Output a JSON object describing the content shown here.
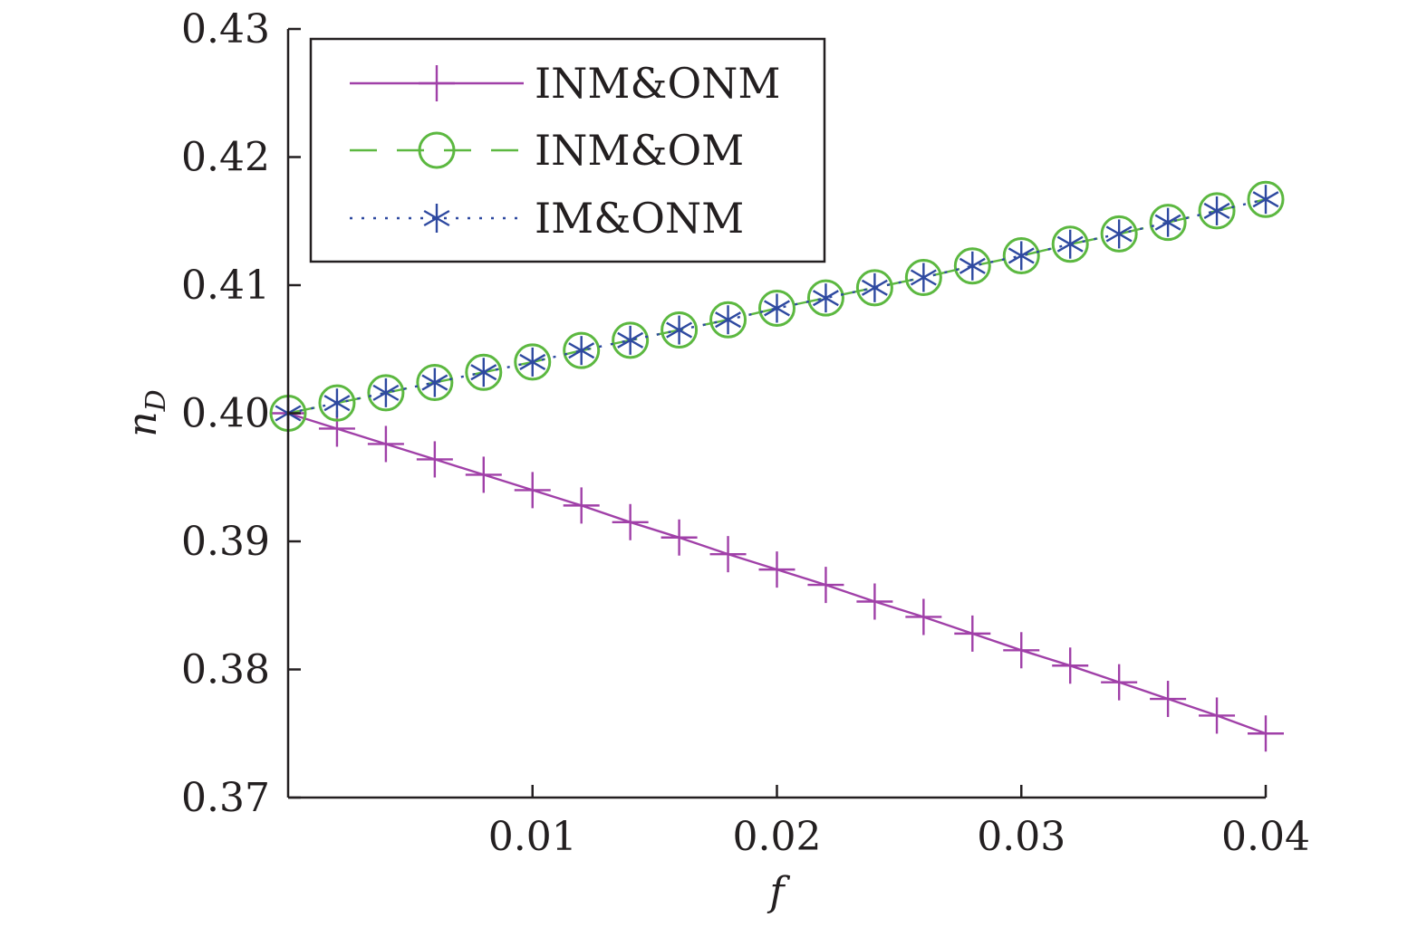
{
  "chart_data": {
    "type": "line",
    "title": "",
    "xlabel": "f",
    "ylabel": "n",
    "ylabel_sub": "D",
    "xlim": [
      0,
      0.04
    ],
    "ylim": [
      0.37,
      0.43
    ],
    "x_ticks": [
      0.01,
      0.02,
      0.03,
      0.04
    ],
    "x_tick_labels": [
      "0.01",
      "0.02",
      "0.03",
      "0.04"
    ],
    "y_ticks": [
      0.37,
      0.38,
      0.39,
      0.4,
      0.41,
      0.42,
      0.43
    ],
    "y_tick_labels": [
      "0.37",
      "0.38",
      "0.39",
      "0.40",
      "0.41",
      "0.42",
      "0.43"
    ],
    "grid": false,
    "legend_position": "top-left",
    "x": [
      0,
      0.002,
      0.004,
      0.006,
      0.008,
      0.01,
      0.012,
      0.014,
      0.016,
      0.018,
      0.02,
      0.022,
      0.024,
      0.026,
      0.028,
      0.03,
      0.032,
      0.034,
      0.036,
      0.038,
      0.04
    ],
    "series": [
      {
        "name": "INM&ONM",
        "color": "#a040a8",
        "line": "solid",
        "marker": "plus",
        "values": [
          0.4,
          0.3988,
          0.3976,
          0.3964,
          0.3952,
          0.394,
          0.3928,
          0.3915,
          0.3903,
          0.389,
          0.3878,
          0.3866,
          0.3853,
          0.3841,
          0.3828,
          0.3815,
          0.3803,
          0.379,
          0.3777,
          0.3764,
          0.375
        ]
      },
      {
        "name": "INM&OM",
        "color": "#5cb840",
        "line": "dashed",
        "marker": "circle",
        "values": [
          0.4,
          0.4008,
          0.4016,
          0.4024,
          0.4032,
          0.404,
          0.4049,
          0.4057,
          0.4065,
          0.4073,
          0.4082,
          0.409,
          0.4098,
          0.4106,
          0.4115,
          0.4123,
          0.4132,
          0.414,
          0.4149,
          0.4158,
          0.4167
        ]
      },
      {
        "name": "IM&ONM",
        "color": "#2e49a0",
        "line": "dotted",
        "marker": "asterisk",
        "values": [
          0.4,
          0.4008,
          0.4016,
          0.4024,
          0.4032,
          0.404,
          0.4049,
          0.4057,
          0.4065,
          0.4073,
          0.4082,
          0.409,
          0.4098,
          0.4106,
          0.4115,
          0.4123,
          0.4132,
          0.414,
          0.4149,
          0.4158,
          0.4167
        ]
      }
    ]
  }
}
